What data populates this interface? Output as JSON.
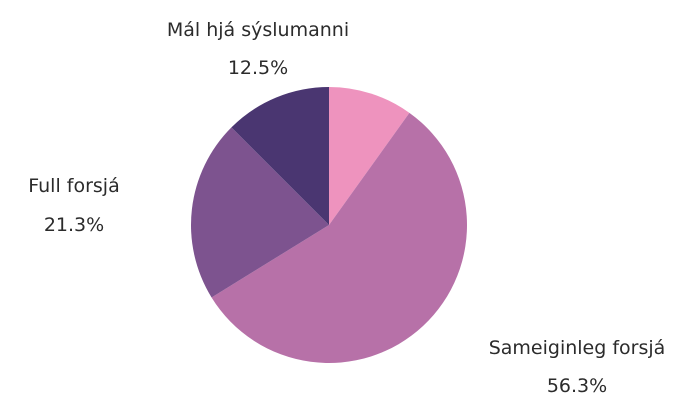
{
  "chart_data": {
    "type": "pie",
    "start_angle_deg": 0,
    "direction": "clockwise",
    "slices": [
      {
        "label": "",
        "value": 9.9,
        "value_label": "",
        "color": "#EE93BE"
      },
      {
        "label": "Sameiginleg forsjá",
        "value": 56.3,
        "value_label": "56.3%",
        "color": "#B771A8"
      },
      {
        "label": "Full forsjá",
        "value": 21.3,
        "value_label": "21.3%",
        "color": "#7D538F"
      },
      {
        "label": "Mál hjá sýslumanni",
        "value": 12.5,
        "value_label": "12.5%",
        "color": "#4A3671"
      }
    ]
  }
}
